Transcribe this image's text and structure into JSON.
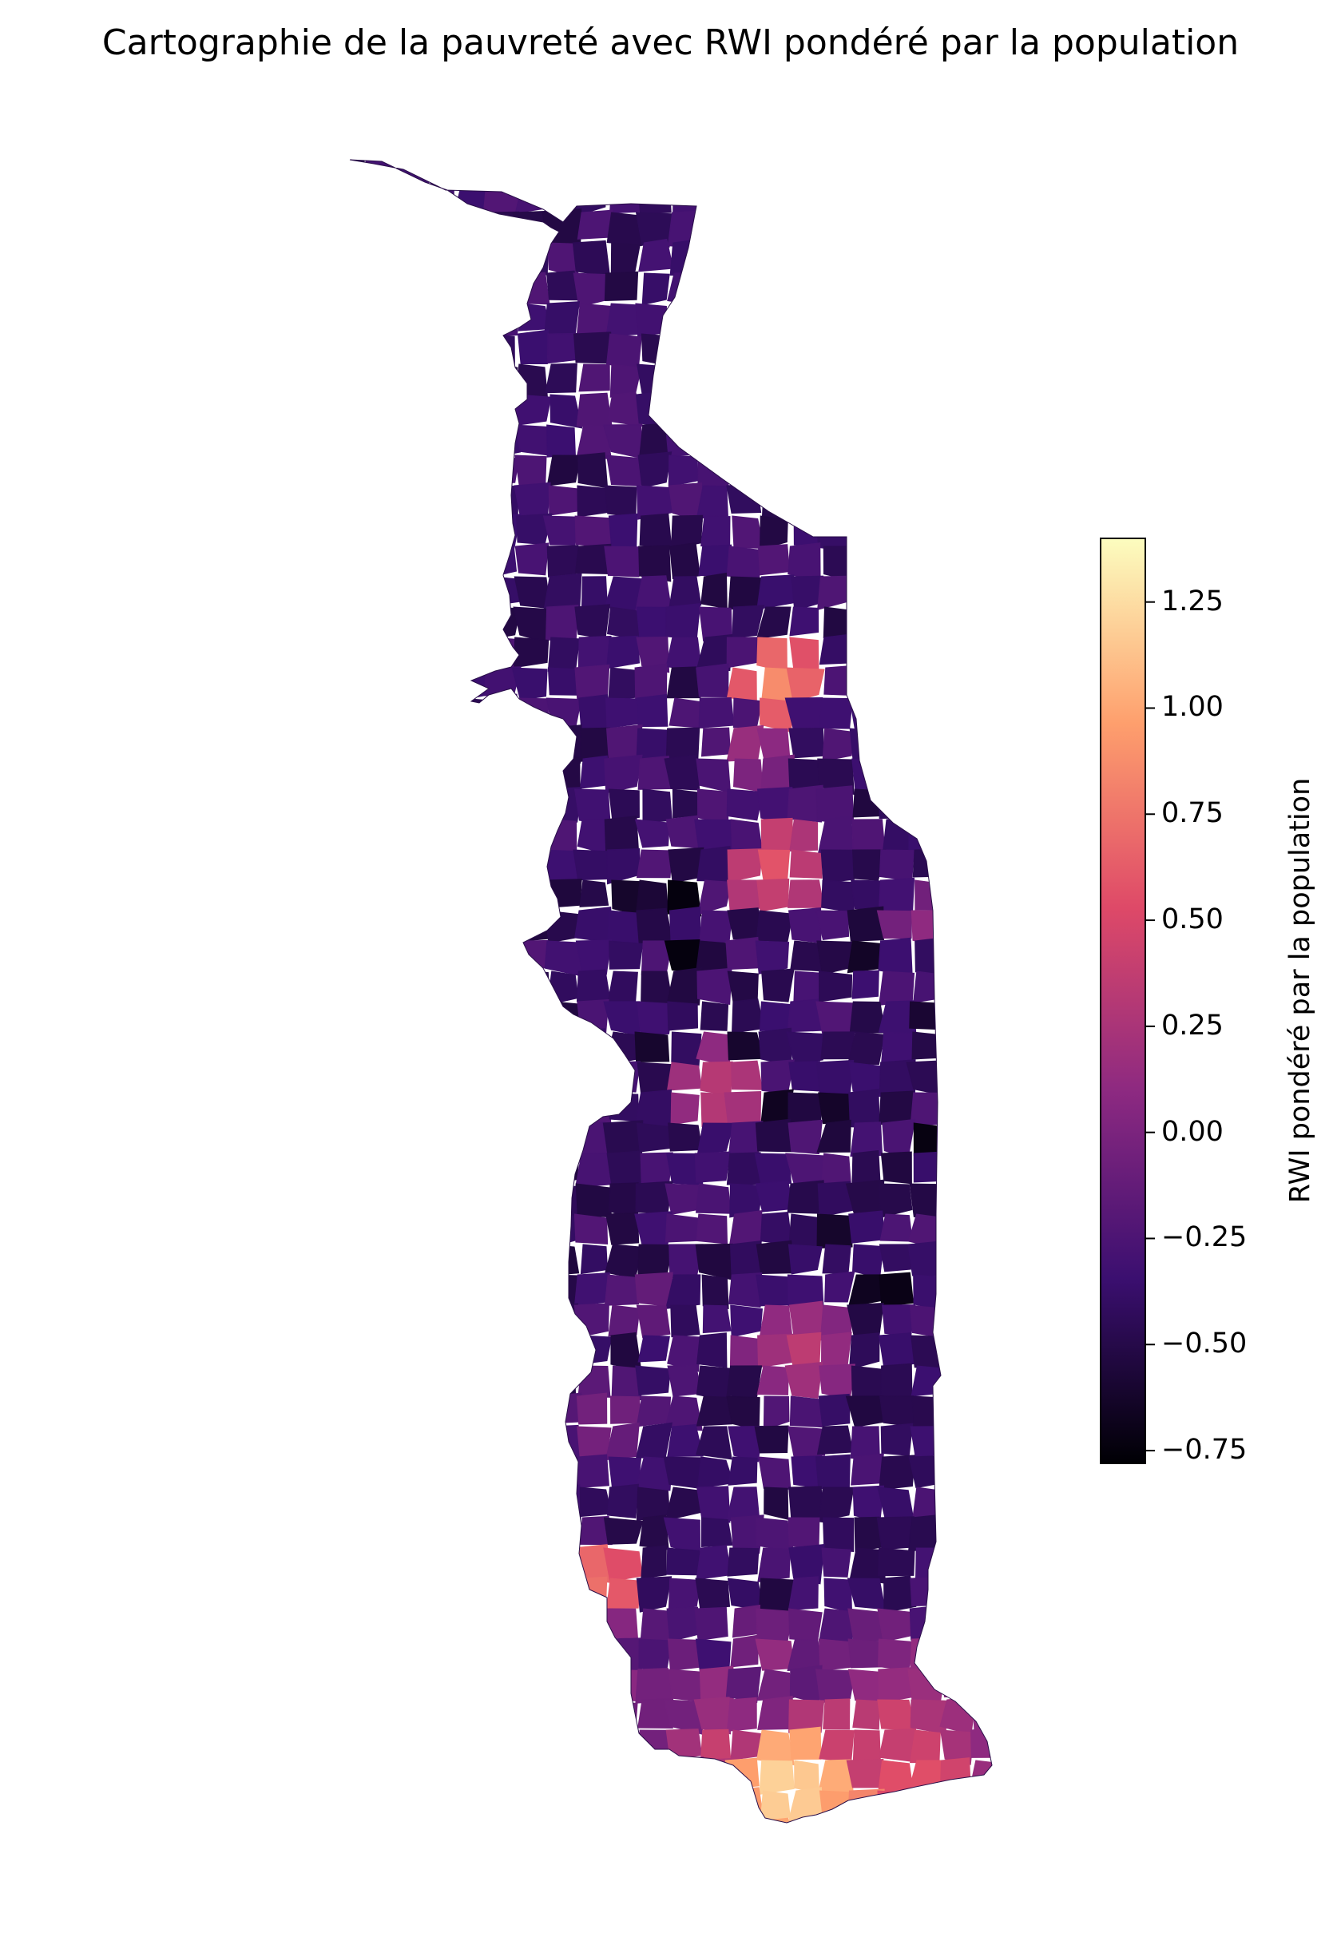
{
  "title": "Cartographie de la pauvreté avec RWI pondéré par la population",
  "colorbar": {
    "label": "RWI pondéré par la population",
    "min": -0.78,
    "max": 1.4,
    "ticks": [
      {
        "value": 1.25,
        "label": "1.25"
      },
      {
        "value": 1.0,
        "label": "1.00"
      },
      {
        "value": 0.75,
        "label": "0.75"
      },
      {
        "value": 0.5,
        "label": "0.50"
      },
      {
        "value": 0.25,
        "label": "0.25"
      },
      {
        "value": 0.0,
        "label": "0.00"
      },
      {
        "value": -0.25,
        "label": "−0.25"
      },
      {
        "value": -0.5,
        "label": "−0.50"
      },
      {
        "value": -0.75,
        "label": "−0.75"
      }
    ],
    "colormap": [
      "#000004",
      "#3b0f70",
      "#8c2981",
      "#de4968",
      "#fe9f6d",
      "#fcfdbf"
    ]
  }
}
